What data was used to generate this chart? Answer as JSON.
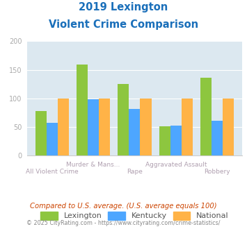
{
  "title_line1": "2019 Lexington",
  "title_line2": "Violent Crime Comparison",
  "categories": [
    "All Violent Crime",
    "Murder & Mans...",
    "Rape",
    "Aggravated Assault",
    "Robbery"
  ],
  "row1_labels": [
    "",
    "Murder & Mans...",
    "",
    "Aggravated Assault",
    ""
  ],
  "row2_labels": [
    "All Violent Crime",
    "",
    "Rape",
    "",
    "Robbery"
  ],
  "lexington": [
    78,
    159,
    125,
    51,
    136
  ],
  "kentucky": [
    57,
    99,
    82,
    52,
    61
  ],
  "national": [
    100,
    100,
    100,
    100,
    100
  ],
  "color_lexington": "#8dc63f",
  "color_kentucky": "#4da6ff",
  "color_national": "#ffb347",
  "ylim": [
    0,
    200
  ],
  "yticks": [
    0,
    50,
    100,
    150,
    200
  ],
  "background_color": "#dce8f0",
  "title_color": "#1a6fba",
  "label_color_top": "#b0a0b0",
  "label_color_bot": "#b0a0b0",
  "legend_labels": [
    "Lexington",
    "Kentucky",
    "National"
  ],
  "footnote1": "Compared to U.S. average. (U.S. average equals 100)",
  "footnote2": "© 2025 CityRating.com - https://www.cityrating.com/crime-statistics/",
  "footnote1_color": "#cc4400",
  "footnote2_color": "#888888",
  "ytick_color": "#aaaaaa",
  "grid_color": "#ffffff"
}
